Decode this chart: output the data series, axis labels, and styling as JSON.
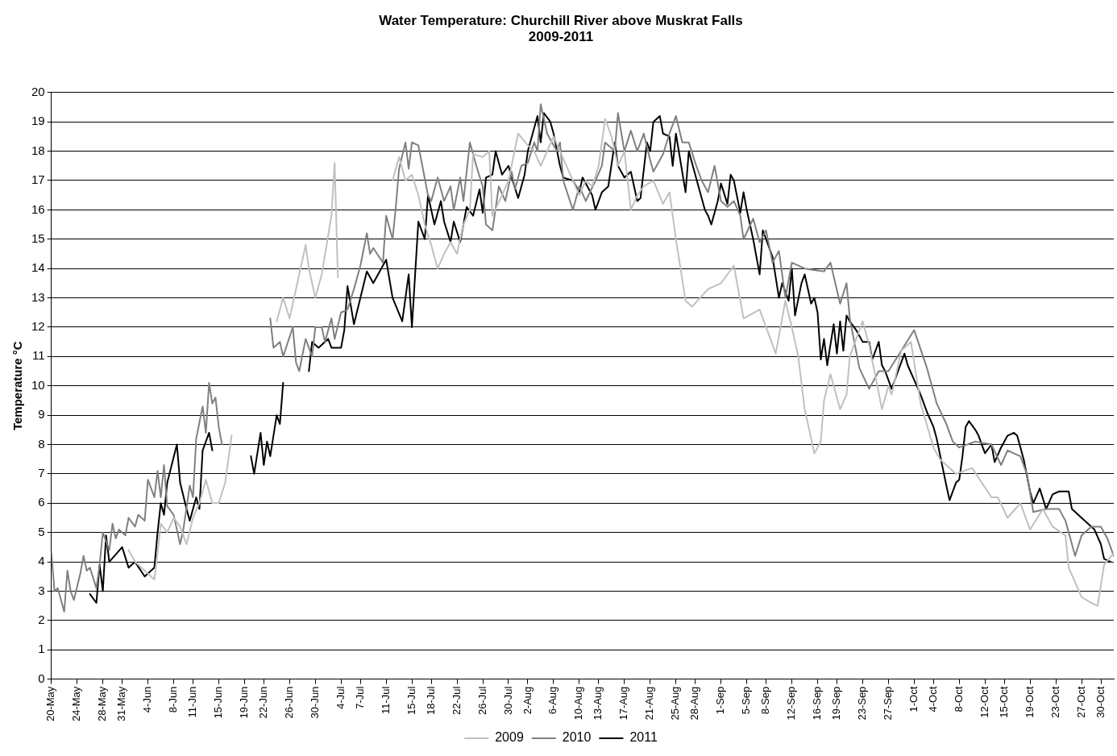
{
  "chart_data": {
    "type": "line",
    "title": "Water Temperature: Churchill River above Muskrat Falls\n2009-2011",
    "ylabel": "Temperature °C",
    "grid": "y",
    "legend": "bottom",
    "line_style": "solid",
    "xlim": [
      "--05-20",
      "--11-01"
    ],
    "xticks": [
      {
        "value": "--05-20",
        "label": "20-May"
      },
      {
        "value": "--05-24",
        "label": "24-May"
      },
      {
        "value": "--05-28",
        "label": "28-May"
      },
      {
        "value": "--05-31",
        "label": "31-May"
      },
      {
        "value": "--06-04",
        "label": "4-Jun"
      },
      {
        "value": "--06-08",
        "label": "8-Jun"
      },
      {
        "value": "--06-11",
        "label": "11-Jun"
      },
      {
        "value": "--06-15",
        "label": "15-Jun"
      },
      {
        "value": "--06-19",
        "label": "19-Jun"
      },
      {
        "value": "--06-22",
        "label": "22-Jun"
      },
      {
        "value": "--06-26",
        "label": "26-Jun"
      },
      {
        "value": "--06-30",
        "label": "30-Jun"
      },
      {
        "value": "--07-04",
        "label": "4-Jul"
      },
      {
        "value": "--07-07",
        "label": "7-Jul"
      },
      {
        "value": "--07-11",
        "label": "11-Jul"
      },
      {
        "value": "--07-15",
        "label": "15-Jul"
      },
      {
        "value": "--07-18",
        "label": "18-Jul"
      },
      {
        "value": "--07-22",
        "label": "22-Jul"
      },
      {
        "value": "--07-26",
        "label": "26-Jul"
      },
      {
        "value": "--07-30",
        "label": "30-Jul"
      },
      {
        "value": "--08-02",
        "label": "2-Aug"
      },
      {
        "value": "--08-06",
        "label": "6-Aug"
      },
      {
        "value": "--08-10",
        "label": "10-Aug"
      },
      {
        "value": "--08-13",
        "label": "13-Aug"
      },
      {
        "value": "--08-17",
        "label": "17-Aug"
      },
      {
        "value": "--08-21",
        "label": "21-Aug"
      },
      {
        "value": "--08-25",
        "label": "25-Aug"
      },
      {
        "value": "--08-28",
        "label": "28-Aug"
      },
      {
        "value": "--09-01",
        "label": "1-Sep"
      },
      {
        "value": "--09-05",
        "label": "5-Sep"
      },
      {
        "value": "--09-08",
        "label": "8-Sep"
      },
      {
        "value": "--09-12",
        "label": "12-Sep"
      },
      {
        "value": "--09-16",
        "label": "16-Sep"
      },
      {
        "value": "--09-19",
        "label": "19-Sep"
      },
      {
        "value": "--09-23",
        "label": "23-Sep"
      },
      {
        "value": "--09-27",
        "label": "27-Sep"
      },
      {
        "value": "--10-01",
        "label": "1-Oct"
      },
      {
        "value": "--10-04",
        "label": "4-Oct"
      },
      {
        "value": "--10-08",
        "label": "8-Oct"
      },
      {
        "value": "--10-12",
        "label": "12-Oct"
      },
      {
        "value": "--10-15",
        "label": "15-Oct"
      },
      {
        "value": "--10-19",
        "label": "19-Oct"
      },
      {
        "value": "--10-23",
        "label": "23-Oct"
      },
      {
        "value": "--10-27",
        "label": "27-Oct"
      },
      {
        "value": "--10-30",
        "label": "30-Oct"
      }
    ],
    "ylim": [
      0,
      20
    ],
    "yticks": [
      0,
      1,
      2,
      3,
      4,
      5,
      6,
      7,
      8,
      9,
      10,
      11,
      12,
      13,
      14,
      15,
      16,
      17,
      18,
      19,
      20
    ],
    "series": [
      {
        "name": "2009",
        "color": "#c0c0c0",
        "x": [
          "--06-01",
          "--06-02",
          "--06-03",
          "--06-04",
          "--06-05",
          "--06-05T12:00",
          "--06-06",
          "--06-07",
          "--06-08",
          "--06-09",
          "--06-10",
          "--06-11",
          "--06-12",
          "--06-13",
          "--06-14",
          "--06-15",
          "--06-16",
          "--06-17",
          "--06-20",
          "--06-24",
          "--06-25",
          "--06-26",
          "--06-27",
          "--06-28T12:00",
          "--06-29",
          "--06-30",
          "--07-01",
          "--07-02T12:00",
          "--07-03",
          "--07-03T12:00",
          "--07-07",
          "--07-12",
          "--07-13",
          "--07-14",
          "--07-15",
          "--07-16",
          "--07-17",
          "--07-18",
          "--07-19",
          "--07-20",
          "--07-21",
          "--07-22",
          "--07-23",
          "--07-24",
          "--07-24T12:00",
          "--07-26",
          "--07-27",
          "--07-27T12:00",
          "--07-29",
          "--07-30",
          "--07-31T12:00",
          "--08-02",
          "--08-03",
          "--08-04",
          "--08-05",
          "--08-06",
          "--08-07",
          "--08-08",
          "--08-09",
          "--08-10",
          "--08-11",
          "--08-12",
          "--08-13",
          "--08-14",
          "--08-15",
          "--08-16",
          "--08-17",
          "--08-18",
          "--08-19",
          "--08-20",
          "--08-21T12:00",
          "--08-23",
          "--08-24",
          "--08-25",
          "--08-26T12:00",
          "--08-27T12:00",
          "--08-30",
          "--09-01",
          "--09-03",
          "--09-04T12:00",
          "--09-07",
          "--09-09T12:00",
          "--09-11",
          "--09-12",
          "--09-13",
          "--09-14",
          "--09-15T12:00",
          "--09-16T12:00",
          "--09-17",
          "--09-18",
          "--09-19T12:00",
          "--09-20T12:00",
          "--09-21",
          "--09-23",
          "--09-24",
          "--09-26",
          "--09-27",
          "--09-27T12:00",
          "--09-29",
          "--09-30T12:00",
          "--10-02",
          "--10-04",
          "--10-05",
          "--10-07T12:00",
          "--10-10",
          "--10-13",
          "--10-14",
          "--10-15T12:00",
          "--10-17T12:00",
          "--10-19",
          "--10-21",
          "--10-22T12:00",
          "--10-24T12:00",
          "--10-25",
          "--10-27",
          "--10-28T12:00",
          "--10-29T12:00",
          "--10-30T12:00",
          "--11-01"
        ],
        "values": [
          4.4,
          4.0,
          3.8,
          3.6,
          3.4,
          4.3,
          5.3,
          5.0,
          5.5,
          5.2,
          4.6,
          5.5,
          6.0,
          6.8,
          6.0,
          6.0,
          6.7,
          8.3,
          null,
          12.2,
          13.0,
          12.3,
          13.3,
          14.8,
          14.0,
          13.0,
          13.8,
          15.8,
          17.6,
          13.7,
          null,
          17.0,
          17.8,
          17.0,
          17.2,
          16.5,
          15.5,
          14.8,
          14.0,
          14.5,
          14.9,
          14.5,
          15.5,
          16.0,
          17.9,
          17.8,
          18.0,
          15.8,
          16.5,
          17.0,
          18.6,
          18.2,
          18.0,
          17.5,
          18.0,
          18.5,
          18.0,
          17.5,
          17.0,
          16.5,
          17.0,
          16.8,
          17.5,
          19.1,
          18.5,
          17.5,
          18.0,
          16.0,
          16.5,
          16.8,
          17.0,
          16.2,
          16.6,
          15.0,
          12.9,
          12.7,
          13.3,
          13.5,
          14.1,
          12.3,
          12.6,
          11.1,
          12.9,
          12.0,
          11.0,
          9.2,
          7.7,
          8.1,
          9.5,
          10.4,
          9.2,
          9.7,
          11.0,
          12.2,
          11.4,
          9.2,
          10.0,
          9.7,
          11.2,
          11.5,
          9.4,
          7.9,
          7.5,
          7.0,
          7.2,
          6.2,
          6.2,
          5.5,
          6.0,
          5.1,
          5.8,
          5.2,
          4.9,
          3.8,
          2.8,
          2.6,
          2.5,
          3.9,
          4.3
        ]
      },
      {
        "name": "2010",
        "color": "#808080",
        "x": [
          "--05-20",
          "--05-20T12:00",
          "--05-21",
          "--05-22",
          "--05-22T12:00",
          "--05-23",
          "--05-23T12:00",
          "--05-24T12:00",
          "--05-25",
          "--05-25T12:00",
          "--05-26",
          "--05-27",
          "--05-27T12:00",
          "--05-28",
          "--05-29",
          "--05-29T12:00",
          "--05-30",
          "--05-30T12:00",
          "--05-31T12:00",
          "--06-01",
          "--06-02",
          "--06-02T12:00",
          "--06-03T12:00",
          "--06-04",
          "--06-05",
          "--06-05T12:00",
          "--06-06",
          "--06-06T12:00",
          "--06-07",
          "--06-08",
          "--06-09",
          "--06-09T12:00",
          "--06-10T12:00",
          "--06-11",
          "--06-11T12:00",
          "--06-12T12:00",
          "--06-13",
          "--06-13T12:00",
          "--06-14",
          "--06-14T12:00",
          "--06-15",
          "--06-15T12:00",
          "--06-19",
          "--06-23",
          "--06-23T12:00",
          "--06-24T12:00",
          "--06-25",
          "--06-26T12:00",
          "--06-27",
          "--06-27T12:00",
          "--06-28T12:00",
          "--06-29T12:00",
          "--06-30",
          "--07-01",
          "--07-01T12:00",
          "--07-02T12:00",
          "--07-03",
          "--07-04",
          "--07-05",
          "--07-06",
          "--07-07",
          "--07-08",
          "--07-08T12:00",
          "--07-09",
          "--07-10T12:00",
          "--07-11",
          "--07-12",
          "--07-12T12:00",
          "--07-13",
          "--07-14",
          "--07-14T12:00",
          "--07-15",
          "--07-16",
          "--07-17T12:00",
          "--07-18",
          "--07-19",
          "--07-20",
          "--07-21",
          "--07-21T12:00",
          "--07-22T12:00",
          "--07-23",
          "--07-24",
          "--07-25",
          "--07-26",
          "--07-26T12:00",
          "--07-27T12:00",
          "--07-28T12:00",
          "--07-29T12:00",
          "--07-30T12:00",
          "--07-31",
          "--08-01",
          "--08-02",
          "--08-03",
          "--08-03T12:00",
          "--08-04",
          "--08-05",
          "--08-06T12:00",
          "--08-07",
          "--08-07T12:00",
          "--08-09",
          "--08-10",
          "--08-11",
          "--08-12T12:00",
          "--08-13T12:00",
          "--08-14",
          "--08-15T12:00",
          "--08-16",
          "--08-17",
          "--08-18",
          "--08-19",
          "--08-20",
          "--08-21",
          "--08-21T12:00",
          "--08-23",
          "--08-24",
          "--08-25",
          "--08-26",
          "--08-27",
          "--08-28",
          "--08-29",
          "--08-30",
          "--08-31",
          "--09-01",
          "--09-02",
          "--09-03",
          "--09-04",
          "--09-04T12:00",
          "--09-06",
          "--09-07",
          "--09-08",
          "--09-09",
          "--09-10",
          "--09-11",
          "--09-12",
          "--09-14",
          "--09-17",
          "--09-18",
          "--09-19T12:00",
          "--09-20T12:00",
          "--09-21",
          "--09-22T12:00",
          "--09-24",
          "--09-25T12:00",
          "--09-27",
          "--09-29",
          "--10-01",
          "--10-03",
          "--10-04T12:00",
          "--10-06",
          "--10-07",
          "--10-08",
          "--10-10T12:00",
          "--10-13",
          "--10-14T12:00",
          "--10-15T12:00",
          "--10-17T12:00",
          "--10-18T12:00",
          "--10-19T12:00",
          "--10-21T12:00",
          "--10-23T12:00",
          "--10-24T12:00",
          "--10-26",
          "--10-27",
          "--10-28T12:00",
          "--10-30",
          "--10-31",
          "--11-01"
        ],
        "values": [
          4.3,
          3.0,
          3.1,
          2.3,
          3.7,
          3.0,
          2.7,
          3.6,
          4.2,
          3.7,
          3.8,
          3.1,
          3.9,
          5.0,
          4.4,
          5.3,
          4.8,
          5.1,
          4.9,
          5.5,
          5.2,
          5.6,
          5.4,
          6.8,
          6.2,
          7.1,
          6.2,
          7.3,
          5.9,
          5.6,
          4.6,
          5.1,
          6.6,
          6.2,
          8.2,
          9.3,
          8.4,
          10.1,
          9.4,
          9.6,
          8.6,
          8.0,
          null,
          12.3,
          11.3,
          11.5,
          11.0,
          12.0,
          10.8,
          10.5,
          11.6,
          11.0,
          12.0,
          12.0,
          11.5,
          12.3,
          11.6,
          12.5,
          12.6,
          13.3,
          14.1,
          15.2,
          14.5,
          14.7,
          14.2,
          15.8,
          15.0,
          16.1,
          17.4,
          18.3,
          17.4,
          18.3,
          18.2,
          16.5,
          16.3,
          17.1,
          16.3,
          16.8,
          16.0,
          17.1,
          16.3,
          18.3,
          17.5,
          16.8,
          15.5,
          15.3,
          16.8,
          16.3,
          17.3,
          16.7,
          17.5,
          17.6,
          18.3,
          18.0,
          19.6,
          18.6,
          18.0,
          18.3,
          17.0,
          16.0,
          16.8,
          16.3,
          17.0,
          17.5,
          18.3,
          18.0,
          19.3,
          18.0,
          18.7,
          18.0,
          18.6,
          17.7,
          17.3,
          17.9,
          18.6,
          19.2,
          18.3,
          18.3,
          17.6,
          17.0,
          16.6,
          17.5,
          16.3,
          16.1,
          16.3,
          15.8,
          15.0,
          15.7,
          14.9,
          15.3,
          14.2,
          14.6,
          13.0,
          14.2,
          14.0,
          13.9,
          14.2,
          12.8,
          13.5,
          12.3,
          10.6,
          9.9,
          10.5,
          10.5,
          11.2,
          11.9,
          10.6,
          9.4,
          8.7,
          8.1,
          7.9,
          8.1,
          8.0,
          7.3,
          7.8,
          7.6,
          7.0,
          5.7,
          5.8,
          5.8,
          5.4,
          4.2,
          4.9,
          5.2,
          5.2,
          4.8,
          4.2
        ]
      },
      {
        "name": "2011",
        "color": "#000000",
        "x": [
          "--05-26",
          "--05-27",
          "--05-27T12:00",
          "--05-28",
          "--05-28T12:00",
          "--05-29",
          "--05-31",
          "--06-01",
          "--06-02",
          "--06-03T12:00",
          "--06-05",
          "--06-05T12:00",
          "--06-06",
          "--06-06T12:00",
          "--06-07",
          "--06-08T12:00",
          "--06-09",
          "--06-10",
          "--06-10T12:00",
          "--06-11T12:00",
          "--06-12",
          "--06-12T12:00",
          "--06-13T12:00",
          "--06-14",
          "--06-17",
          "--06-20",
          "--06-20T12:00",
          "--06-21T12:00",
          "--06-22",
          "--06-22T12:00",
          "--06-23",
          "--06-23T12:00",
          "--06-24",
          "--06-24T12:00",
          "--06-25",
          "--06-27",
          "--06-29",
          "--06-29T12:00",
          "--06-30T12:00",
          "--07-02",
          "--07-02T12:00",
          "--07-04",
          "--07-04T12:00",
          "--07-05",
          "--07-06",
          "--07-07",
          "--07-08",
          "--07-09",
          "--07-11",
          "--07-12",
          "--07-13T12:00",
          "--07-14T12:00",
          "--07-15",
          "--07-16",
          "--07-17",
          "--07-17T12:00",
          "--07-18T12:00",
          "--07-19T12:00",
          "--07-20",
          "--07-21",
          "--07-21T12:00",
          "--07-22T12:00",
          "--07-23T12:00",
          "--07-24T12:00",
          "--07-25T12:00",
          "--07-26",
          "--07-26T12:00",
          "--07-27T12:00",
          "--07-28",
          "--07-29",
          "--07-30",
          "--07-30T12:00",
          "--07-31T12:00",
          "--08-01T12:00",
          "--08-02",
          "--08-03T12:00",
          "--08-04",
          "--08-04T12:00",
          "--08-05T12:00",
          "--08-06",
          "--08-07",
          "--08-07T12:00",
          "--08-09",
          "--08-10",
          "--08-10T12:00",
          "--08-12",
          "--08-12T12:00",
          "--08-13T12:00",
          "--08-14T12:00",
          "--08-15T12:00",
          "--08-16",
          "--08-17",
          "--08-18",
          "--08-19",
          "--08-19T12:00",
          "--08-20T12:00",
          "--08-21",
          "--08-21T12:00",
          "--08-22T12:00",
          "--08-23",
          "--08-24",
          "--08-24T12:00",
          "--08-25",
          "--08-26T12:00",
          "--08-27",
          "--08-28",
          "--08-29T12:00",
          "--08-30",
          "--08-30T12:00",
          "--08-31T12:00",
          "--09-01",
          "--09-02",
          "--09-02T12:00",
          "--09-03",
          "--09-04",
          "--09-04T12:00",
          "--09-05",
          "--09-06",
          "--09-07",
          "--09-07T12:00",
          "--09-08",
          "--09-09",
          "--09-10",
          "--09-10T12:00",
          "--09-11T12:00",
          "--09-12",
          "--09-12T12:00",
          "--09-13T12:00",
          "--09-14",
          "--09-15",
          "--09-15T12:00",
          "--09-16",
          "--09-16T12:00",
          "--09-17",
          "--09-17T12:00",
          "--09-18T12:00",
          "--09-19",
          "--09-19T12:00",
          "--09-20",
          "--09-20T12:00",
          "--09-21",
          "--09-22",
          "--09-23",
          "--09-24",
          "--09-24T12:00",
          "--09-25T12:00",
          "--09-26",
          "--09-26T12:00",
          "--09-27T12:00",
          "--09-28T12:00",
          "--09-29T12:00",
          "--09-30",
          "--10-01",
          "--10-02",
          "--10-03",
          "--10-04",
          "--10-04T12:00",
          "--10-06",
          "--10-06T12:00",
          "--10-07T12:00",
          "--10-08",
          "--10-08T12:00",
          "--10-09",
          "--10-09T12:00",
          "--10-10T12:00",
          "--10-11",
          "--10-12",
          "--10-13",
          "--10-13T12:00",
          "--10-14T12:00",
          "--10-15T12:00",
          "--10-16T12:00",
          "--10-17",
          "--10-18",
          "--10-19",
          "--10-19T12:00",
          "--10-20T12:00",
          "--10-21T12:00",
          "--10-22T12:00",
          "--10-23T12:00",
          "--10-25",
          "--10-25T12:00",
          "--10-27",
          "--10-28",
          "--10-29",
          "--10-30",
          "--10-30T12:00",
          "--10-31T12:00"
        ],
        "values": [
          2.9,
          2.6,
          3.9,
          3.0,
          4.9,
          4.0,
          4.5,
          3.8,
          4.0,
          3.5,
          3.8,
          5.0,
          6.0,
          5.6,
          6.7,
          8.0,
          6.7,
          5.8,
          5.4,
          6.2,
          5.8,
          7.8,
          8.4,
          7.8,
          null,
          7.6,
          7.0,
          8.4,
          7.3,
          8.1,
          7.6,
          8.3,
          9.0,
          8.7,
          10.1,
          null,
          10.5,
          11.5,
          11.3,
          11.6,
          11.3,
          11.3,
          11.9,
          13.4,
          12.1,
          13.0,
          13.9,
          13.5,
          14.3,
          13.0,
          12.2,
          13.8,
          12.0,
          15.6,
          15.0,
          16.5,
          15.5,
          16.3,
          15.6,
          14.9,
          15.6,
          14.9,
          16.1,
          15.8,
          16.7,
          15.9,
          17.1,
          17.2,
          18.0,
          17.2,
          17.5,
          17.1,
          16.4,
          17.2,
          18.0,
          19.2,
          18.3,
          19.3,
          19.0,
          18.6,
          17.5,
          17.1,
          17.0,
          16.6,
          17.1,
          16.5,
          16.0,
          16.6,
          16.8,
          18.3,
          17.5,
          17.1,
          17.3,
          16.3,
          16.4,
          18.3,
          18.0,
          19.0,
          19.2,
          18.6,
          18.5,
          17.5,
          18.6,
          16.6,
          18.0,
          17.2,
          16.0,
          15.8,
          15.5,
          16.3,
          16.9,
          16.2,
          17.2,
          17.0,
          15.9,
          16.6,
          16.0,
          15.0,
          13.8,
          15.3,
          15.0,
          14.4,
          13.0,
          13.5,
          12.9,
          14.0,
          12.4,
          13.5,
          13.8,
          12.8,
          13.0,
          12.5,
          10.9,
          11.6,
          10.7,
          12.1,
          11.1,
          12.2,
          11.2,
          12.4,
          12.2,
          11.9,
          11.5,
          11.5,
          10.9,
          11.5,
          10.7,
          10.5,
          9.9,
          10.5,
          11.1,
          10.7,
          10.2,
          9.7,
          9.1,
          8.6,
          8.2,
          6.6,
          6.1,
          6.7,
          6.8,
          7.6,
          8.6,
          8.8,
          8.5,
          8.3,
          7.7,
          8.0,
          7.4,
          7.9,
          8.3,
          8.4,
          8.3,
          7.5,
          6.4,
          6.0,
          6.5,
          5.8,
          6.3,
          6.4,
          6.4,
          5.8,
          5.5,
          5.3,
          5.1,
          4.6,
          4.1,
          4.0
        ]
      }
    ]
  }
}
